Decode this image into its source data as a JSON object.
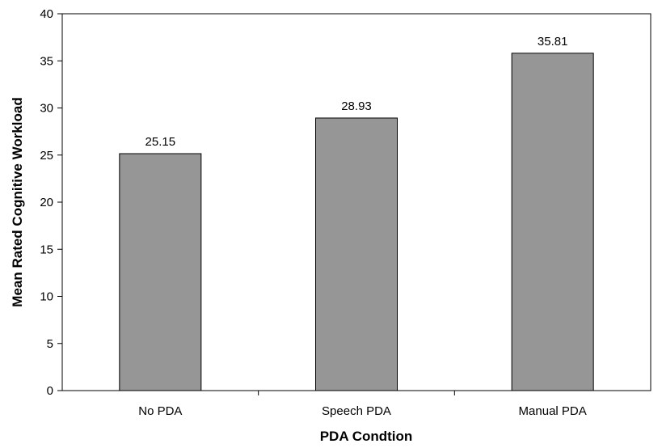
{
  "chart_data": {
    "type": "bar",
    "title": "",
    "xlabel": "PDA Condtion",
    "ylabel": "Mean Rated Cognitive Workload",
    "categories": [
      "No PDA",
      "Speech PDA",
      "Manual PDA"
    ],
    "values": [
      25.15,
      28.93,
      35.81
    ],
    "data_labels": [
      "25.15",
      "28.93",
      "35.81"
    ],
    "ylim": [
      0,
      40
    ],
    "yticks": [
      0,
      5,
      10,
      15,
      20,
      25,
      30,
      35,
      40
    ],
    "grid": false,
    "legend": "none",
    "bar_color": "#969696",
    "bar_edge_color": "#000000"
  }
}
